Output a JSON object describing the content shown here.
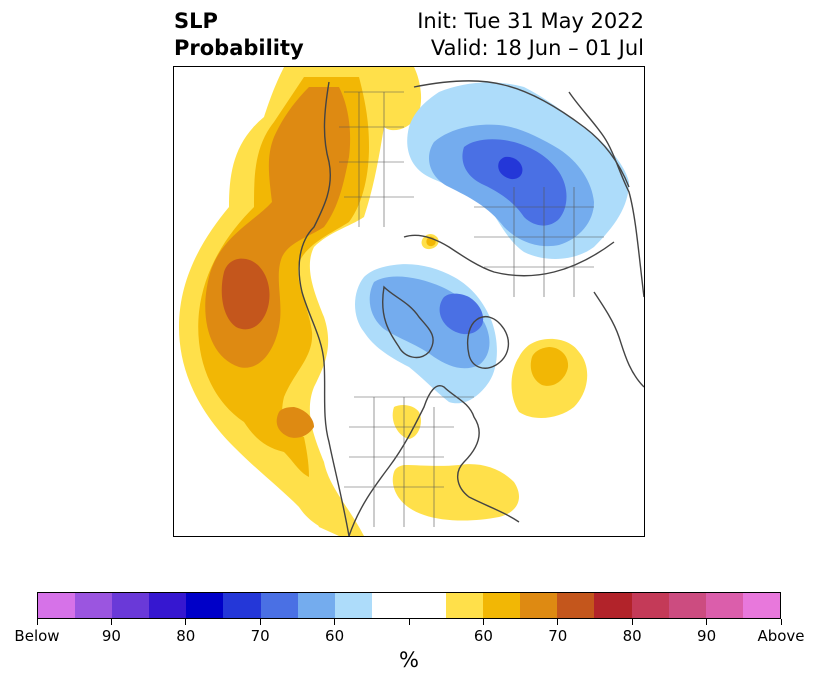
{
  "title": {
    "left_line1": "SLP",
    "left_line2": "Probability",
    "right_line1": "Init: Tue 31 May 2022",
    "right_line2": "Valid: 18 Jun – 01 Jul"
  },
  "colorbar": {
    "unit": "%",
    "colors": [
      "#d672e8",
      "#9b55e0",
      "#6a39d8",
      "#3617d0",
      "#0000c8",
      "#2437d8",
      "#4a70e4",
      "#74acee",
      "#addcfa",
      "#ffffff",
      "#ffffff",
      "#ffe04a",
      "#f2b705",
      "#de8a12",
      "#c4561c",
      "#b2232a",
      "#c43a58",
      "#cc4c80",
      "#db5eab",
      "#e878dc"
    ],
    "tick_labels": [
      "Below",
      "90",
      "80",
      "70",
      "60",
      "",
      "60",
      "70",
      "80",
      "90",
      "Above"
    ]
  },
  "map": {
    "projection": "north-polar-stereographic",
    "colors": {
      "yellow": "#ffe04a",
      "gold": "#f2b705",
      "orange": "#de8a12",
      "dark_orange": "#c4561c",
      "light_blue": "#addcfa",
      "mid_blue": "#74acee",
      "blue": "#4a70e4",
      "dark_blue": "#2437d8",
      "coast": "#444444"
    }
  }
}
